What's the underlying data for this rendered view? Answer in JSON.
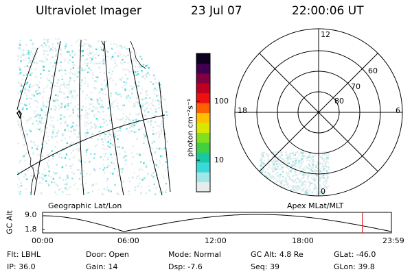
{
  "header": {
    "instrument": "Ultraviolet Imager",
    "date": "23 Jul 07",
    "time": "22:00:06 UT"
  },
  "colorbar": {
    "unit_label": "photon cm⁻²s⁻¹",
    "tick_labels": [
      "100",
      "10"
    ],
    "colors": [
      "#e6ecec",
      "#a0e8e8",
      "#3ad9d9",
      "#18c8a0",
      "#40d040",
      "#80e020",
      "#d8e800",
      "#ffc000",
      "#ff6000",
      "#f01010",
      "#c00020",
      "#800040",
      "#400050",
      "#100020"
    ]
  },
  "polar_plot": {
    "clock_labels": {
      "top": "12",
      "left": "18",
      "right": "6",
      "bottom": "0"
    },
    "lat_labels": [
      "60",
      "70",
      "80"
    ]
  },
  "map_label": "Geographic Lat/Lon",
  "polar_label": "Apex MLat/MLT",
  "altitude_plot": {
    "axis_label": "GC Alt",
    "y_labels": [
      "9.0",
      "1.8"
    ],
    "x_labels": [
      "00:00",
      "06:00",
      "12:00",
      "18:00",
      "23:59"
    ],
    "marker_time_hours": 22.0,
    "marker_color": "#e02020"
  },
  "info": {
    "row1": [
      {
        "key": "Flt:",
        "value": "LBHL"
      },
      {
        "key": "Door:",
        "value": "Open"
      },
      {
        "key": "Mode:",
        "value": "Normal"
      },
      {
        "key": "GC Alt:",
        "value": "4.8 Re"
      },
      {
        "key": "GLat:",
        "value": "-46.0"
      }
    ],
    "row2": [
      {
        "key": "IP:",
        "value": "36.0"
      },
      {
        "key": "Gain:",
        "value": "14"
      },
      {
        "key": "Dsp:",
        "value": "-7.6"
      },
      {
        "key": "Seq:",
        "value": "39"
      },
      {
        "key": "GLon:",
        "value": "39.8"
      }
    ]
  }
}
